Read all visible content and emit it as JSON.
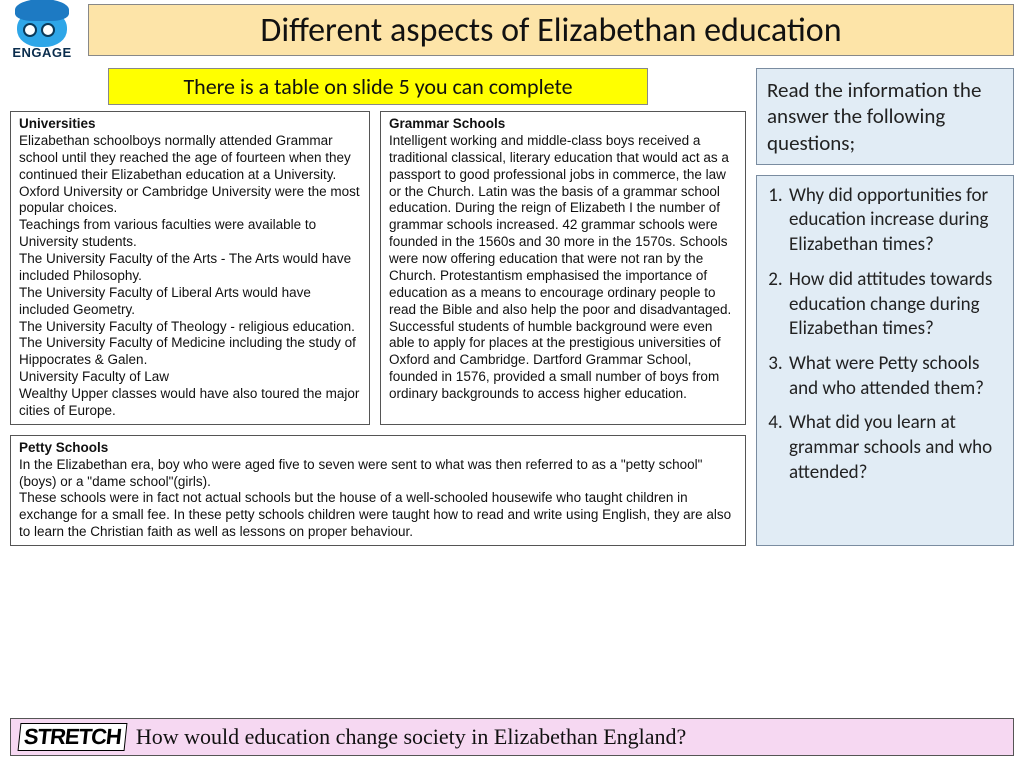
{
  "logo": {
    "label": "ENGAGE"
  },
  "title": "Different aspects of Elizabethan education",
  "yellow_note": "There is a table on slide 5 you can complete",
  "universities": {
    "heading": "Universities",
    "body": "Elizabethan schoolboys normally attended Grammar school until they reached the age of fourteen when they continued their Elizabethan education at a University. Oxford University or Cambridge University were the most popular choices.\nTeachings from various faculties were available to University students.\nThe University Faculty of the Arts - The Arts would have included Philosophy.\nThe University Faculty of Liberal Arts would have included Geometry.\nThe University Faculty of Theology - religious education.\nThe University Faculty of Medicine including the study of Hippocrates & Galen.\nUniversity Faculty of Law\nWealthy Upper classes would have also toured the major cities of Europe."
  },
  "grammar": {
    "heading": "Grammar Schools",
    "body": "Intelligent working and middle-class boys received a traditional classical, literary education that would act as a passport to good professional jobs in commerce, the law or the Church. Latin was the basis of a grammar school education. During the reign of Elizabeth I the number of grammar schools increased. 42 grammar schools were founded in the 1560s and 30 more in the 1570s. Schools were now offering education that were not ran by the Church. Protestantism emphasised the importance of education as a means to encourage ordinary people to read the Bible and also help the poor and disadvantaged. Successful students of humble background were even able to apply for places at the prestigious universities of Oxford and Cambridge. Dartford Grammar School, founded in 1576, provided a small number of boys from ordinary backgrounds to access higher education."
  },
  "petty": {
    "heading": "Petty Schools",
    "body": "In the Elizabethan era, boy who were aged five to seven were sent to what was then referred to as a \"petty school\"(boys) or a \"dame school\"(girls).\nThese schools were in fact not actual schools but the house of a well-schooled housewife who taught children in exchange for a small fee. In these petty schools children were taught how to read and write using English, they are also to learn the Christian faith as well as lessons on proper behaviour."
  },
  "info_prompt": "Read the information the answer the following questions;",
  "questions": [
    "Why did opportunities for education increase during Elizabethan times?",
    "How did attitudes towards education change during Elizabethan times?",
    "What were Petty schools and who attended them?",
    "What did you learn at grammar schools and who attended?"
  ],
  "stretch": {
    "label": "STRETCH",
    "question": "How would education change society in Elizabethan England?"
  },
  "colors": {
    "title_bg": "#fde4a8",
    "note_bg": "#ffff00",
    "info_bg": "#e1ecf5",
    "stretch_bg": "#f6d8f2"
  }
}
